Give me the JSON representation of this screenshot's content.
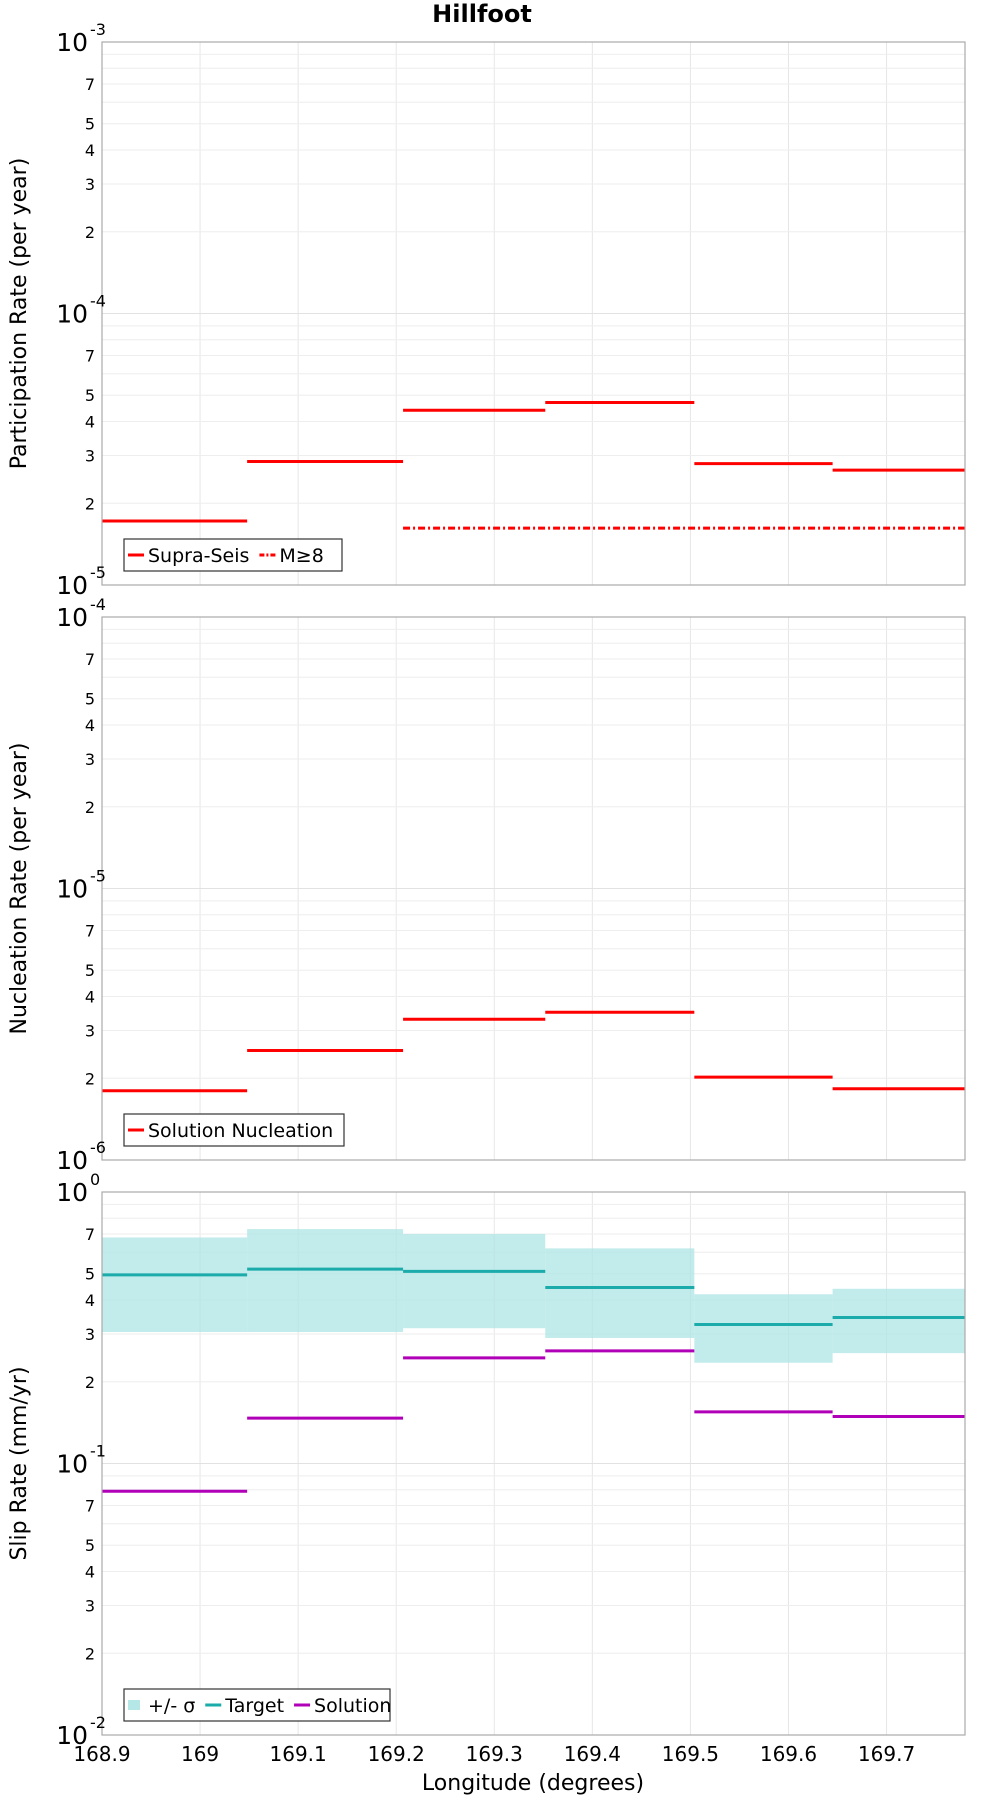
{
  "chart_data": [
    {
      "type": "line",
      "title": "Hillfoot",
      "xlabel": "",
      "ylabel": "Participation Rate (per year)",
      "yscale": "log",
      "ylim": [
        1e-05,
        0.001
      ],
      "xlim": [
        168.9,
        169.78
      ],
      "grid": true,
      "legend_position": "bottom-left",
      "series": [
        {
          "name": "Supra-Seis",
          "color": "#ff0000",
          "style": "solid",
          "segments": [
            {
              "x": [
                168.9,
                169.048
              ],
              "y": 1.72e-05
            },
            {
              "x": [
                169.048,
                169.207
              ],
              "y": 2.85e-05
            },
            {
              "x": [
                169.207,
                169.352
              ],
              "y": 4.4e-05
            },
            {
              "x": [
                169.352,
                169.504
              ],
              "y": 4.7e-05
            },
            {
              "x": [
                169.504,
                169.645
              ],
              "y": 2.8e-05
            },
            {
              "x": [
                169.645,
                169.78
              ],
              "y": 2.65e-05
            }
          ]
        },
        {
          "name": "M≥8",
          "color": "#ff0000",
          "style": "dashdot",
          "segments": [
            {
              "x": [
                169.207,
                169.78
              ],
              "y": 1.62e-05
            }
          ]
        }
      ]
    },
    {
      "type": "line",
      "title": "",
      "xlabel": "",
      "ylabel": "Nucleation Rate (per year)",
      "yscale": "log",
      "ylim": [
        1e-06,
        0.0001
      ],
      "xlim": [
        168.9,
        169.78
      ],
      "grid": true,
      "legend_position": "bottom-left",
      "series": [
        {
          "name": "Solution Nucleation",
          "color": "#ff0000",
          "style": "solid",
          "segments": [
            {
              "x": [
                168.9,
                169.048
              ],
              "y": 1.8e-06
            },
            {
              "x": [
                169.048,
                169.207
              ],
              "y": 2.53e-06
            },
            {
              "x": [
                169.207,
                169.352
              ],
              "y": 3.3e-06
            },
            {
              "x": [
                169.352,
                169.504
              ],
              "y": 3.5e-06
            },
            {
              "x": [
                169.504,
                169.645
              ],
              "y": 2.02e-06
            },
            {
              "x": [
                169.645,
                169.78
              ],
              "y": 1.83e-06
            }
          ]
        }
      ]
    },
    {
      "type": "line",
      "title": "",
      "xlabel": "Longitude (degrees)",
      "ylabel": "Slip Rate (mm/yr)",
      "yscale": "log",
      "ylim": [
        0.01,
        1
      ],
      "xlim": [
        168.9,
        169.78
      ],
      "grid": true,
      "legend_position": "bottom-left",
      "series": [
        {
          "name": "+/- σ",
          "color": "#aee4e4",
          "style": "band",
          "segments": [
            {
              "x": [
                168.9,
                169.048
              ],
              "low": 0.305,
              "high": 0.68
            },
            {
              "x": [
                169.048,
                169.207
              ],
              "low": 0.305,
              "high": 0.73
            },
            {
              "x": [
                169.207,
                169.352
              ],
              "low": 0.315,
              "high": 0.7
            },
            {
              "x": [
                169.352,
                169.504
              ],
              "low": 0.29,
              "high": 0.62
            },
            {
              "x": [
                169.504,
                169.645
              ],
              "low": 0.235,
              "high": 0.42
            },
            {
              "x": [
                169.645,
                169.78
              ],
              "low": 0.255,
              "high": 0.44
            }
          ]
        },
        {
          "name": "Target",
          "color": "#1aabaa",
          "style": "solid",
          "segments": [
            {
              "x": [
                168.9,
                169.048
              ],
              "y": 0.495
            },
            {
              "x": [
                169.048,
                169.207
              ],
              "y": 0.52
            },
            {
              "x": [
                169.207,
                169.352
              ],
              "y": 0.51
            },
            {
              "x": [
                169.352,
                169.504
              ],
              "y": 0.445
            },
            {
              "x": [
                169.504,
                169.645
              ],
              "y": 0.325
            },
            {
              "x": [
                169.645,
                169.78
              ],
              "y": 0.345
            }
          ]
        },
        {
          "name": "Solution",
          "color": "#b000b8",
          "style": "solid",
          "segments": [
            {
              "x": [
                168.9,
                169.048
              ],
              "y": 0.079
            },
            {
              "x": [
                169.048,
                169.207
              ],
              "y": 0.147
            },
            {
              "x": [
                169.207,
                169.352
              ],
              "y": 0.245
            },
            {
              "x": [
                169.352,
                169.504
              ],
              "y": 0.26
            },
            {
              "x": [
                169.504,
                169.645
              ],
              "y": 0.155
            },
            {
              "x": [
                169.645,
                169.78
              ],
              "y": 0.149
            }
          ]
        }
      ]
    }
  ],
  "x_ticks": [
    "168.9",
    "169",
    "169.1",
    "169.2",
    "169.3",
    "169.4",
    "169.5",
    "169.6",
    "169.7"
  ],
  "y_ticks": [
    {
      "major_base": [
        "10",
        "10",
        "10"
      ],
      "major_exp": [
        "-5",
        "-4",
        "-3"
      ],
      "minor": [
        "2",
        "3",
        "4",
        "5",
        "7"
      ]
    },
    {
      "major_base": [
        "10",
        "10",
        "10"
      ],
      "major_exp": [
        "-6",
        "-5",
        "-4"
      ],
      "minor": [
        "2",
        "3",
        "4",
        "5",
        "7"
      ]
    },
    {
      "major_base": [
        "10",
        "10",
        "10"
      ],
      "major_exp": [
        "-2",
        "-1",
        "0"
      ],
      "minor": [
        "2",
        "3",
        "4",
        "5",
        "7"
      ]
    }
  ]
}
